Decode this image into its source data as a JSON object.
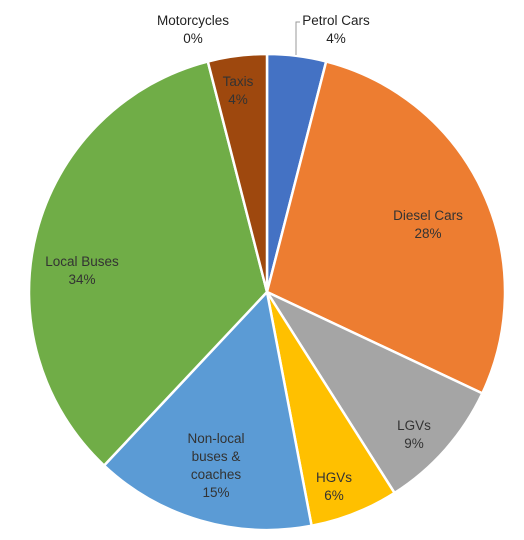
{
  "chart_data": {
    "type": "pie",
    "title": "",
    "slices": [
      {
        "name": "Petrol Cars",
        "value": 4,
        "label": "4%",
        "color": "#4472C4",
        "label_placement": "outside"
      },
      {
        "name": "Diesel Cars",
        "value": 28,
        "label": "28%",
        "color": "#ED7D31",
        "label_placement": "inside"
      },
      {
        "name": "LGVs",
        "value": 9,
        "label": "9%",
        "color": "#A5A5A5",
        "label_placement": "inside"
      },
      {
        "name": "HGVs",
        "value": 6,
        "label": "6%",
        "color": "#FFC000",
        "label_placement": "inside"
      },
      {
        "name": "Non-local buses & coaches",
        "value": 15,
        "label": "15%",
        "color": "#5B9BD5",
        "label_placement": "inside"
      },
      {
        "name": "Local Buses",
        "value": 34,
        "label": "34%",
        "color": "#70AD47",
        "label_placement": "inside"
      },
      {
        "name": "Motorcycles",
        "value": 0,
        "label": "0%",
        "color": "#264478",
        "label_placement": "outside"
      },
      {
        "name": "Taxis",
        "value": 4,
        "label": "4%",
        "color": "#9E480E",
        "label_placement": "inside"
      }
    ],
    "start_angle_deg": 0,
    "direction": "clockwise",
    "legend": "none"
  }
}
